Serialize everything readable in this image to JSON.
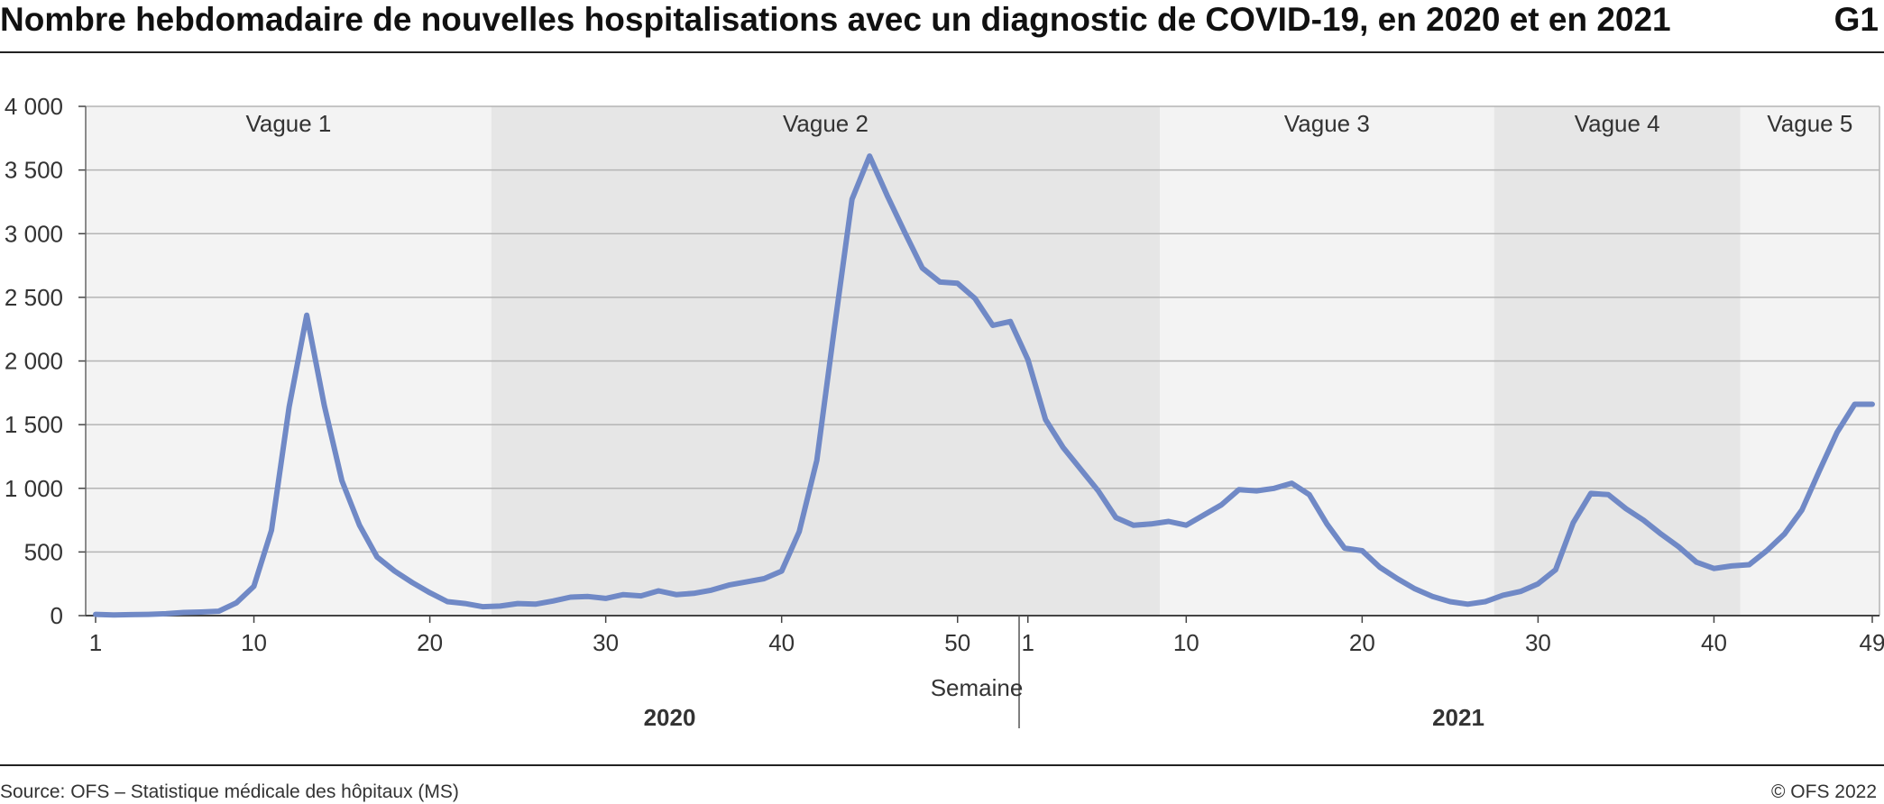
{
  "header": {
    "title": "Nombre hebdomadaire de nouvelles hospitalisations avec un diagnostic de COVID-19, en 2020 et en 2021",
    "chart_id": "G1"
  },
  "footer": {
    "source": "Source: OFS – Statistique médicale des hôpitaux (MS)",
    "copyright": "© OFS 2022"
  },
  "colors": {
    "line": "#7089c6",
    "band_light": "#f3f3f3",
    "band_dark": "#e6e6e6",
    "grid": "#b4b4b4"
  },
  "chart_data": {
    "type": "line",
    "title": "Nombre hebdomadaire de nouvelles hospitalisations avec un diagnostic de COVID-19, en 2020 et en 2021",
    "xlabel": "Semaine",
    "ylabel": "",
    "ylim": [
      0,
      4000
    ],
    "y_ticks": [
      {
        "value": 0,
        "label": "0"
      },
      {
        "value": 500,
        "label": "500"
      },
      {
        "value": 1000,
        "label": "1 000"
      },
      {
        "value": 1500,
        "label": "1 500"
      },
      {
        "value": 2000,
        "label": "2 000"
      },
      {
        "value": 2500,
        "label": "2 500"
      },
      {
        "value": 3000,
        "label": "3 000"
      },
      {
        "value": 3500,
        "label": "3 500"
      },
      {
        "value": 4000,
        "label": "4 000"
      }
    ],
    "x_ticks": [
      {
        "year": 2020,
        "week": 1,
        "label": "1"
      },
      {
        "year": 2020,
        "week": 10,
        "label": "10"
      },
      {
        "year": 2020,
        "week": 20,
        "label": "20"
      },
      {
        "year": 2020,
        "week": 30,
        "label": "30"
      },
      {
        "year": 2020,
        "week": 40,
        "label": "40"
      },
      {
        "year": 2020,
        "week": 50,
        "label": "50"
      },
      {
        "year": 2021,
        "week": 1,
        "label": "1"
      },
      {
        "year": 2021,
        "week": 10,
        "label": "10"
      },
      {
        "year": 2021,
        "week": 20,
        "label": "20"
      },
      {
        "year": 2021,
        "week": 30,
        "label": "30"
      },
      {
        "year": 2021,
        "week": 40,
        "label": "40"
      },
      {
        "year": 2021,
        "week": 49,
        "label": "49"
      }
    ],
    "years": [
      {
        "label": "2020",
        "weeks": 53
      },
      {
        "label": "2021",
        "weeks": 49
      }
    ],
    "waves": [
      {
        "label": "Vague 1",
        "start": {
          "year": 2020,
          "week": 1
        },
        "end": {
          "year": 2020,
          "week": 23
        }
      },
      {
        "label": "Vague 2",
        "start": {
          "year": 2020,
          "week": 23
        },
        "end": {
          "year": 2021,
          "week": 8
        }
      },
      {
        "label": "Vague 3",
        "start": {
          "year": 2021,
          "week": 8
        },
        "end": {
          "year": 2021,
          "week": 27
        }
      },
      {
        "label": "Vague 4",
        "start": {
          "year": 2021,
          "week": 27
        },
        "end": {
          "year": 2021,
          "week": 41
        }
      },
      {
        "label": "Vague 5",
        "start": {
          "year": 2021,
          "week": 41
        },
        "end": {
          "year": 2021,
          "week": 49
        }
      }
    ],
    "grid": true,
    "legend": "none",
    "series": [
      {
        "values_2020": [
          10,
          5,
          8,
          10,
          15,
          25,
          28,
          35,
          100,
          230,
          670,
          1640,
          2360,
          1650,
          1060,
          710,
          460,
          350,
          260,
          180,
          110,
          95,
          70,
          75,
          95,
          90,
          115,
          145,
          150,
          135,
          165,
          155,
          195,
          165,
          175,
          200,
          240,
          265,
          290,
          350,
          660,
          1220,
          2260,
          3270,
          3610,
          3300,
          3010,
          2730,
          2620,
          2610,
          2490,
          2280,
          2310
        ],
        "values_2021": [
          2010,
          1540,
          1320,
          1150,
          980,
          770,
          710,
          720,
          740,
          710,
          790,
          870,
          990,
          980,
          1000,
          1040,
          950,
          720,
          530,
          510,
          380,
          290,
          210,
          150,
          110,
          90,
          110,
          160,
          190,
          250,
          360,
          730,
          960,
          950,
          840,
          750,
          640,
          540,
          420,
          370,
          390,
          400,
          510,
          640,
          830,
          1140,
          1440,
          1660,
          1660
        ]
      }
    ]
  }
}
